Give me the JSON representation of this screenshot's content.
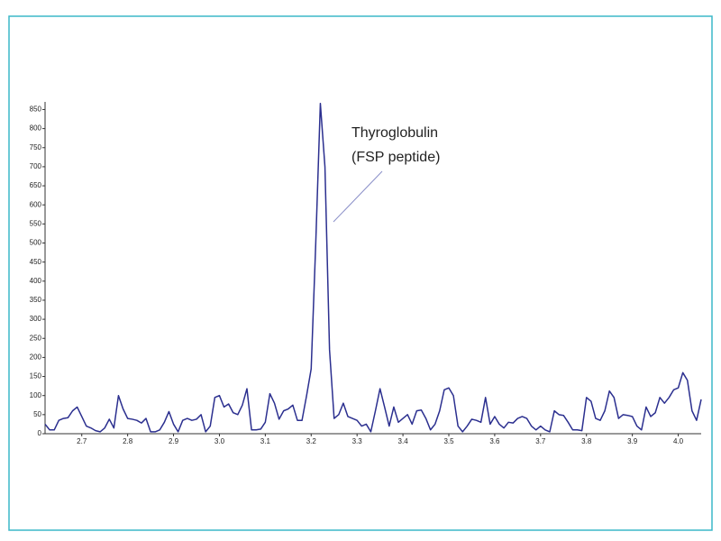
{
  "chart_data": {
    "type": "line",
    "annotations": [
      "Thyroglobulin",
      "(FSP peptide)"
    ],
    "x": [
      2.62,
      2.63,
      2.64,
      2.65,
      2.66,
      2.67,
      2.68,
      2.69,
      2.7,
      2.71,
      2.72,
      2.73,
      2.74,
      2.75,
      2.76,
      2.77,
      2.78,
      2.79,
      2.8,
      2.81,
      2.82,
      2.83,
      2.84,
      2.85,
      2.86,
      2.87,
      2.88,
      2.89,
      2.9,
      2.91,
      2.92,
      2.93,
      2.94,
      2.95,
      2.96,
      2.97,
      2.98,
      2.99,
      3.0,
      3.01,
      3.02,
      3.03,
      3.04,
      3.05,
      3.06,
      3.07,
      3.08,
      3.09,
      3.1,
      3.11,
      3.12,
      3.13,
      3.14,
      3.15,
      3.16,
      3.17,
      3.18,
      3.19,
      3.2,
      3.21,
      3.22,
      3.23,
      3.24,
      3.25,
      3.26,
      3.27,
      3.28,
      3.29,
      3.3,
      3.31,
      3.32,
      3.33,
      3.34,
      3.35,
      3.36,
      3.37,
      3.38,
      3.39,
      3.4,
      3.41,
      3.42,
      3.43,
      3.44,
      3.45,
      3.46,
      3.47,
      3.48,
      3.49,
      3.5,
      3.51,
      3.52,
      3.53,
      3.54,
      3.55,
      3.56,
      3.57,
      3.58,
      3.59,
      3.6,
      3.61,
      3.62,
      3.63,
      3.64,
      3.65,
      3.66,
      3.67,
      3.68,
      3.69,
      3.7,
      3.71,
      3.72,
      3.73,
      3.74,
      3.75,
      3.76,
      3.77,
      3.78,
      3.79,
      3.8,
      3.81,
      3.82,
      3.83,
      3.84,
      3.85,
      3.86,
      3.87,
      3.88,
      3.89,
      3.9,
      3.91,
      3.92,
      3.93,
      3.94,
      3.95,
      3.96,
      3.97,
      3.98,
      3.99,
      4.0,
      4.01,
      4.02,
      4.03,
      4.04,
      4.05
    ],
    "series": [
      {
        "color": "#2b2f8f",
        "values": [
          25,
          10,
          10,
          35,
          40,
          42,
          60,
          70,
          45,
          20,
          15,
          8,
          5,
          15,
          38,
          15,
          100,
          65,
          40,
          38,
          35,
          28,
          40,
          5,
          5,
          10,
          30,
          58,
          25,
          5,
          35,
          40,
          35,
          38,
          50,
          5,
          20,
          95,
          100,
          70,
          78,
          55,
          50,
          75,
          118,
          10,
          10,
          12,
          30,
          105,
          80,
          38,
          60,
          65,
          75,
          35,
          35,
          100,
          170,
          500,
          866,
          700,
          220,
          40,
          50,
          80,
          45,
          40,
          35,
          20,
          25,
          5,
          60,
          118,
          70,
          20,
          70,
          30,
          40,
          50,
          25,
          60,
          62,
          40,
          10,
          25,
          60,
          115,
          120,
          100,
          20,
          5,
          20,
          38,
          35,
          30,
          95,
          25,
          45,
          25,
          15,
          30,
          28,
          40,
          45,
          40,
          20,
          10,
          20,
          10,
          5,
          60,
          50,
          48,
          30,
          10,
          10,
          8,
          95,
          85,
          40,
          35,
          60,
          112,
          95,
          40,
          50,
          48,
          45,
          20,
          10,
          70,
          45,
          55,
          95,
          80,
          95,
          115,
          120,
          160,
          140,
          60,
          35,
          90
        ]
      }
    ],
    "xlim": [
      2.62,
      4.05
    ],
    "ylim": [
      0,
      870
    ],
    "xticks": [
      2.7,
      2.8,
      2.9,
      {
        "value": 3,
        "label": "3.0"
      },
      3.1,
      3.2,
      3.3,
      3.4,
      3.5,
      3.6,
      3.7,
      3.8,
      3.9,
      {
        "value": 4,
        "label": "4.0"
      }
    ],
    "yticks": [
      0,
      50,
      100,
      150,
      200,
      250,
      300,
      350,
      400,
      450,
      500,
      550,
      600,
      650,
      700,
      750,
      800,
      850
    ]
  }
}
